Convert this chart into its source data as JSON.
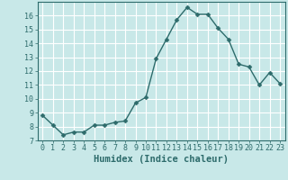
{
  "x": [
    0,
    1,
    2,
    3,
    4,
    5,
    6,
    7,
    8,
    9,
    10,
    11,
    12,
    13,
    14,
    15,
    16,
    17,
    18,
    19,
    20,
    21,
    22,
    23
  ],
  "y": [
    8.8,
    8.1,
    7.4,
    7.6,
    7.6,
    8.1,
    8.1,
    8.3,
    8.4,
    9.7,
    10.1,
    12.9,
    14.3,
    15.7,
    16.6,
    16.1,
    16.1,
    15.1,
    14.3,
    12.5,
    12.3,
    11.0,
    11.9,
    11.1
  ],
  "line_color": "#2d6b6b",
  "marker": "D",
  "marker_size": 2.5,
  "background_color": "#c8e8e8",
  "grid_color": "#ffffff",
  "xlabel": "Humidex (Indice chaleur)",
  "xlim": [
    -0.5,
    23.5
  ],
  "ylim": [
    7,
    17
  ],
  "yticks": [
    7,
    8,
    9,
    10,
    11,
    12,
    13,
    14,
    15,
    16
  ],
  "xticks": [
    0,
    1,
    2,
    3,
    4,
    5,
    6,
    7,
    8,
    9,
    10,
    11,
    12,
    13,
    14,
    15,
    16,
    17,
    18,
    19,
    20,
    21,
    22,
    23
  ],
  "tick_color": "#2d6b6b",
  "axis_color": "#2d6b6b",
  "tick_fontsize": 6.0,
  "xlabel_fontsize": 7.5
}
